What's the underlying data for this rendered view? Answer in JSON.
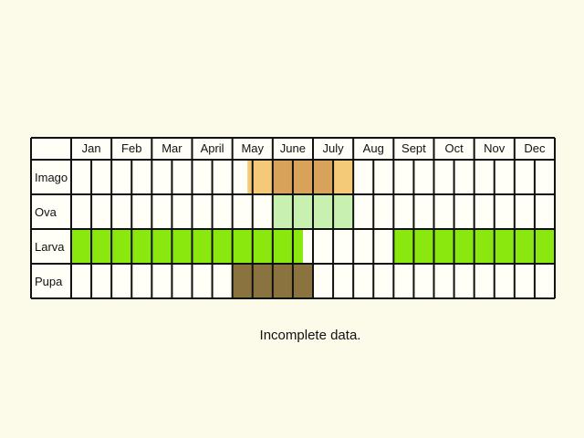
{
  "months": [
    "Jan",
    "Feb",
    "Mar",
    "April",
    "May",
    "June",
    "July",
    "Aug",
    "Sept",
    "Oct",
    "Nov",
    "Dec"
  ],
  "stages": [
    {
      "label": "Imago",
      "segments": [
        {
          "from": 8.75,
          "to": 9.0,
          "color": "#f4c977"
        },
        {
          "from": 9.0,
          "to": 10.0,
          "color": "#f4c977"
        },
        {
          "from": 10.0,
          "to": 13.0,
          "color": "#d9a25a"
        },
        {
          "from": 13.0,
          "to": 14.0,
          "color": "#f4c977"
        }
      ]
    },
    {
      "label": "Ova",
      "segments": [
        {
          "from": 10.0,
          "to": 14.0,
          "color": "#c8f0b0"
        }
      ]
    },
    {
      "label": "Larva",
      "segments": [
        {
          "from": 0.0,
          "to": 11.5,
          "color": "#8ae80f"
        },
        {
          "from": 16.0,
          "to": 24.0,
          "color": "#8ae80f"
        }
      ]
    },
    {
      "label": "Pupa",
      "segments": [
        {
          "from": 8.0,
          "to": 10.0,
          "color": "#8a733e"
        },
        {
          "from": 10.0,
          "to": 12.0,
          "color": "#8a733e"
        }
      ]
    }
  ],
  "note": "Incomplete data.",
  "colors": {
    "background": "#fcfbea",
    "cell": "#fffff8",
    "border": "#111111"
  }
}
